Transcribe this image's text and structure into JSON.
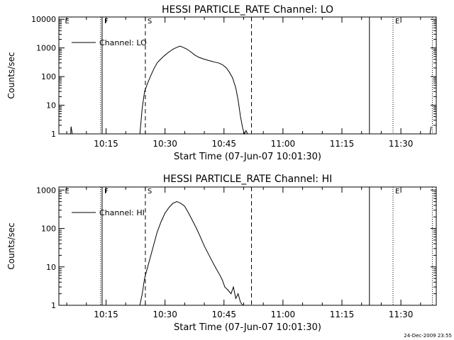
{
  "footer_stamp": "24-Dec-2009 23:55",
  "chart_data": [
    {
      "type": "line",
      "title": "HESSI PARTICLE_RATE Channel: LO",
      "xlabel": "Start Time (07-Jun-07 10:01:30)",
      "ylabel": "Counts/sec",
      "y_scale": "log",
      "xlim": [
        "10:03",
        "11:39"
      ],
      "ylim": [
        1,
        12000
      ],
      "x_tick_labels": [
        "10:15",
        "10:30",
        "10:45",
        "11:00",
        "11:15",
        "11:30"
      ],
      "y_tick_labels": [
        "1",
        "10",
        "100",
        "1000",
        "10000"
      ],
      "legend": {
        "placement": "top-left",
        "entries": [
          "Channel: LO"
        ]
      },
      "markers": [
        {
          "label": "E",
          "time": "10:04",
          "style": "none"
        },
        {
          "label": "F",
          "time": "10:14",
          "style": "solid"
        },
        {
          "label": "",
          "time": "10:13.6",
          "style": "dotted"
        },
        {
          "label": "S",
          "time": "10:25",
          "style": "dashed"
        },
        {
          "label": "",
          "time": "10:52",
          "style": "dashed"
        },
        {
          "label": "",
          "time": "11:22",
          "style": "solid"
        },
        {
          "label": "E",
          "time": "11:28",
          "style": "dotted"
        },
        {
          "label": "",
          "time": "11:38",
          "style": "dotted"
        }
      ],
      "series": [
        {
          "x": [
            "10:06.0",
            "10:06.1",
            "10:06.4",
            "10:23.6",
            "10:24.2",
            "10:24.8",
            "10:25.6",
            "10:26.4",
            "10:27.2",
            "10:28.0",
            "10:29.0",
            "10:30.0",
            "10:31.0",
            "10:32.0",
            "10:33.0",
            "10:33.8",
            "10:34.6",
            "10:35.6",
            "10:36.6",
            "10:37.6",
            "10:38.6",
            "10:39.6",
            "10:40.6",
            "10:41.6",
            "10:42.6",
            "10:43.6",
            "10:44.6",
            "10:45.6",
            "10:46.4",
            "10:47.2",
            "10:48.0",
            "10:48.6",
            "10:49.2",
            "10:49.8",
            "10:50.2",
            "10:50.6",
            "10:51.0",
            "11:37.4",
            "11:37.7"
          ],
          "y": [
            1,
            1.8,
            1,
            1,
            8,
            30,
            60,
            110,
            190,
            300,
            420,
            560,
            720,
            900,
            1050,
            1150,
            1050,
            900,
            720,
            560,
            470,
            420,
            380,
            350,
            320,
            300,
            260,
            200,
            140,
            90,
            40,
            15,
            4,
            1.5,
            1,
            1.3,
            1,
            1,
            1.8
          ]
        }
      ]
    },
    {
      "type": "line",
      "title": "HESSI PARTICLE_RATE Channel: HI",
      "xlabel": "Start Time (07-Jun-07 10:01:30)",
      "ylabel": "Counts/sec",
      "y_scale": "log",
      "xlim": [
        "10:03",
        "11:39"
      ],
      "ylim": [
        1,
        1200
      ],
      "x_tick_labels": [
        "10:15",
        "10:30",
        "10:45",
        "11:00",
        "11:15",
        "11:30"
      ],
      "y_tick_labels": [
        "1",
        "10",
        "100",
        "1000"
      ],
      "legend": {
        "placement": "top-left",
        "entries": [
          "Channel: HI"
        ]
      },
      "markers": [
        {
          "label": "E",
          "time": "10:04",
          "style": "none"
        },
        {
          "label": "F",
          "time": "10:14",
          "style": "solid"
        },
        {
          "label": "",
          "time": "10:13.6",
          "style": "dotted"
        },
        {
          "label": "S",
          "time": "10:25",
          "style": "dashed"
        },
        {
          "label": "",
          "time": "10:52",
          "style": "dashed"
        },
        {
          "label": "",
          "time": "11:22",
          "style": "solid"
        },
        {
          "label": "E",
          "time": "11:28",
          "style": "dotted"
        },
        {
          "label": "",
          "time": "11:38",
          "style": "dotted"
        }
      ],
      "series": [
        {
          "x": [
            "10:23.6",
            "10:24.2",
            "10:24.8",
            "10:25.6",
            "10:26.4",
            "10:27.2",
            "10:28.0",
            "10:29.0",
            "10:30.0",
            "10:31.0",
            "10:32.0",
            "10:33.0",
            "10:34.0",
            "10:35.0",
            "10:36.0",
            "10:37.0",
            "10:38.0",
            "10:39.0",
            "10:40.0",
            "10:41.0",
            "10:42.0",
            "10:43.0",
            "10:44.0",
            "10:44.6",
            "10:45.2",
            "10:46.0",
            "10:46.8",
            "10:47.4",
            "10:48.0",
            "10:48.6",
            "10:49.2",
            "10:49.8"
          ],
          "y": [
            1,
            2,
            5,
            10,
            20,
            40,
            80,
            150,
            250,
            350,
            450,
            500,
            450,
            380,
            250,
            160,
            100,
            60,
            35,
            22,
            14,
            9,
            6,
            4.5,
            3,
            2.5,
            2,
            3,
            1.5,
            2,
            1.2,
            1
          ]
        }
      ]
    }
  ]
}
